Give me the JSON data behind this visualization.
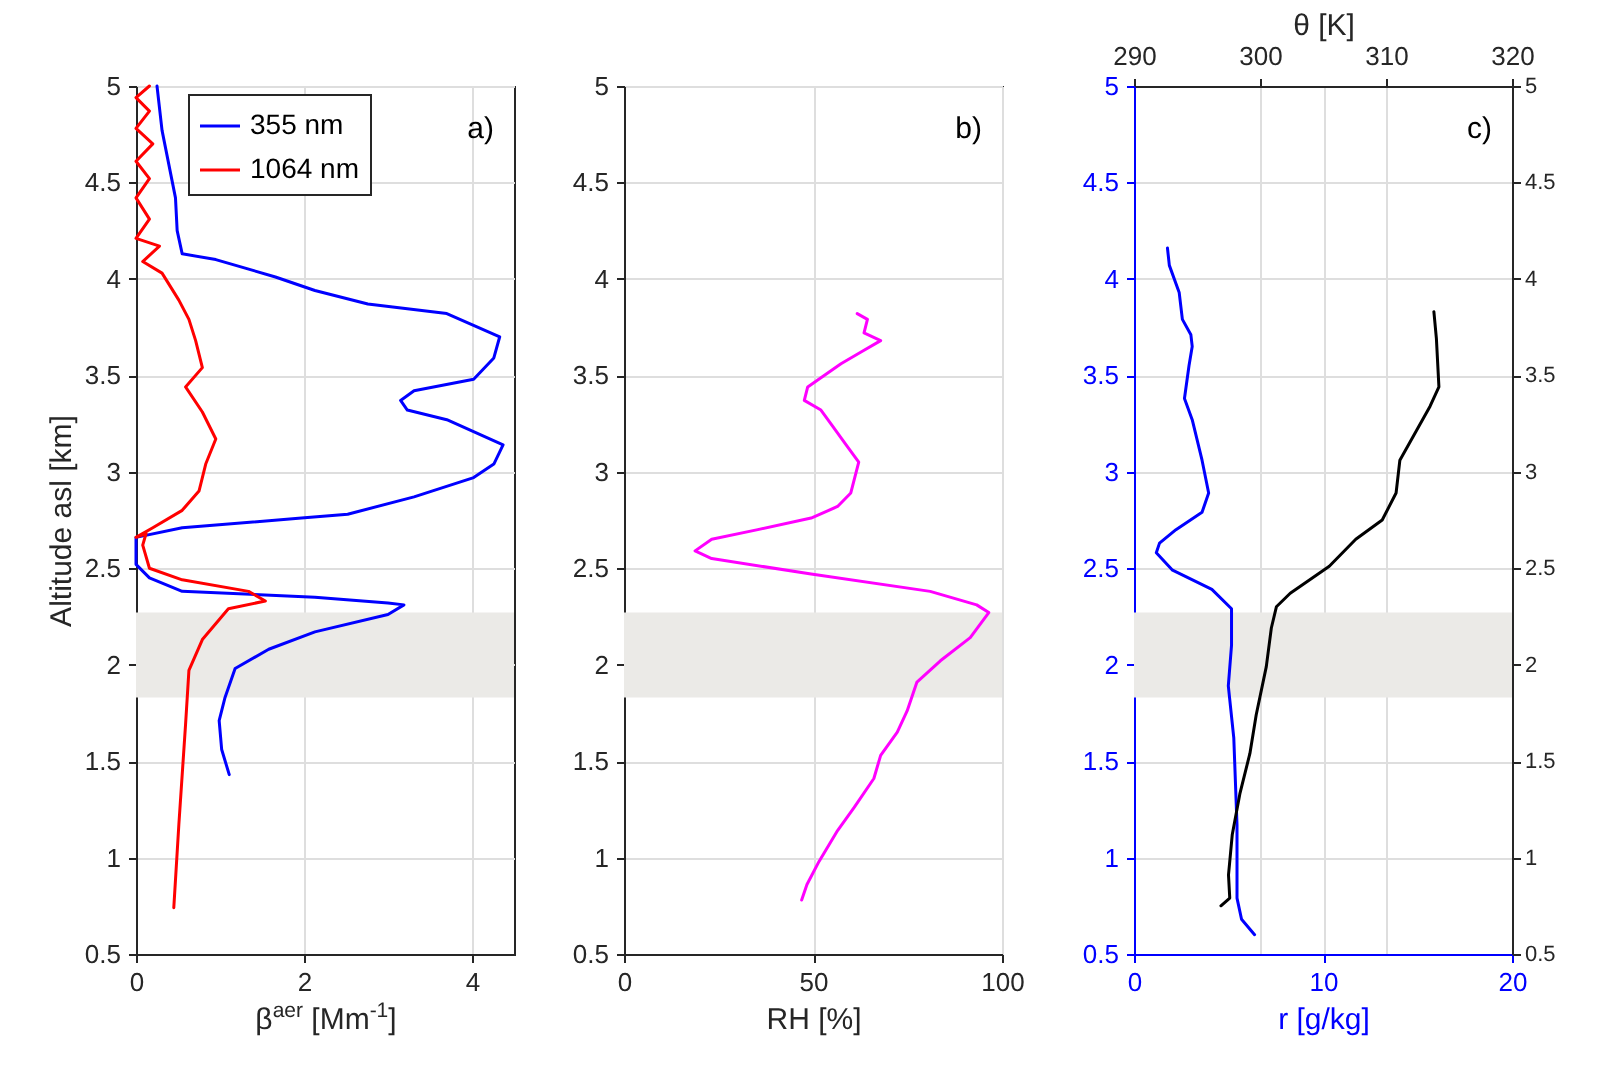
{
  "chart_data": [
    {
      "type": "line",
      "xlabel": "β$^{aer}$ [Mm$^{-1}$]",
      "ylabel": "Altitude asl [km]",
      "xlim": [
        0,
        4.5
      ],
      "xticks": [
        0,
        2,
        4
      ],
      "ylim": [
        0.5,
        5
      ],
      "yticks": [
        0.5,
        1,
        1.5,
        2,
        2.5,
        3,
        3.5,
        4,
        4.5,
        5
      ],
      "grid": true,
      "legend": "top left",
      "annotations": [
        "a)"
      ],
      "bands": [
        {
          "axis": "y",
          "from": 1.83,
          "to": 2.27,
          "color": "#ebeae7"
        }
      ],
      "series": [
        {
          "name": "355 nm",
          "color": "#0000ff",
          "x": [
            0.25,
            0.31,
            0.47,
            0.49,
            0.55,
            0.95,
            1.66,
            2.13,
            2.76,
            3.7,
            4.33,
            4.26,
            4.02,
            3.31,
            3.15,
            3.23,
            3.7,
            4.37,
            4.26,
            4.02,
            3.31,
            2.52,
            1.97,
            0.55,
            0,
            0,
            0.16,
            0.55,
            2.13,
            3.0,
            3.19,
            3.0,
            2.13,
            1.58,
            1.18,
            1.06,
            0.99,
            1.02,
            1.11
          ],
          "values": [
            5.0,
            4.77,
            4.42,
            4.25,
            4.13,
            4.1,
            4.01,
            3.94,
            3.87,
            3.82,
            3.7,
            3.59,
            3.48,
            3.42,
            3.37,
            3.32,
            3.27,
            3.14,
            3.04,
            2.97,
            2.87,
            2.78,
            2.76,
            2.71,
            2.66,
            2.52,
            2.45,
            2.38,
            2.35,
            2.32,
            2.31,
            2.26,
            2.17,
            2.08,
            1.98,
            1.83,
            1.71,
            1.56,
            1.43
          ]
        },
        {
          "name": "1064 nm",
          "color": "#ff0000",
          "x": [
            0.16,
            0,
            0.16,
            0,
            0.2,
            0,
            0.16,
            0,
            0.16,
            0,
            0.28,
            0.08,
            0.31,
            0.51,
            0.63,
            0.71,
            0.79,
            0.59,
            0.79,
            0.95,
            0.83,
            0.75,
            0.55,
            0.2,
            0,
            0.12,
            0.08,
            0.16,
            0.55,
            1.34,
            1.54,
            1.1,
            0.79,
            0.63,
            0.59,
            0.51,
            0.45
          ],
          "values": [
            5.0,
            4.94,
            4.87,
            4.78,
            4.7,
            4.61,
            4.52,
            4.42,
            4.31,
            4.21,
            4.17,
            4.09,
            4.03,
            3.89,
            3.79,
            3.68,
            3.54,
            3.44,
            3.31,
            3.17,
            3.04,
            2.9,
            2.8,
            2.71,
            2.66,
            2.68,
            2.62,
            2.5,
            2.44,
            2.38,
            2.33,
            2.29,
            2.13,
            1.97,
            1.69,
            1.17,
            0.74
          ]
        }
      ]
    },
    {
      "type": "line",
      "xlabel": "RH [%]",
      "xlim": [
        0,
        100
      ],
      "xticks": [
        0,
        50,
        100
      ],
      "ylim": [
        0.5,
        5
      ],
      "yticks": [
        0.5,
        1,
        1.5,
        2,
        2.5,
        3,
        3.5,
        4,
        4.5,
        5
      ],
      "grid": true,
      "annotations": [
        "b)"
      ],
      "bands": [
        {
          "axis": "y",
          "from": 1.83,
          "to": 2.27,
          "color": "#ebeae7"
        }
      ],
      "series": [
        {
          "color": "#ff00ff",
          "x": [
            61.7,
            64.4,
            63.5,
            67.9,
            62.6,
            57.4,
            48.6,
            47.7,
            52.1,
            54.7,
            59.1,
            62.1,
            60,
            56.5,
            49.5,
            35.4,
            23.2,
            18.8,
            23.2,
            49.5,
            81,
            93.3,
            96.5,
            91.6,
            83.7,
            77.5,
            74.9,
            72.3,
            67.9,
            66.1,
            60.9,
            56.5,
            51.6,
            48.4,
            47
          ],
          "values": [
            3.82,
            3.79,
            3.72,
            3.68,
            3.62,
            3.56,
            3.44,
            3.37,
            3.32,
            3.25,
            3.13,
            3.05,
            2.89,
            2.82,
            2.76,
            2.7,
            2.65,
            2.59,
            2.55,
            2.47,
            2.38,
            2.31,
            2.27,
            2.14,
            2.02,
            1.91,
            1.76,
            1.65,
            1.53,
            1.41,
            1.26,
            1.14,
            0.98,
            0.86,
            0.78
          ]
        }
      ]
    },
    {
      "type": "line",
      "xlabel": "r [g/kg]",
      "x2label": "θ [K]",
      "xlim": [
        0,
        20
      ],
      "xticks": [
        0,
        10,
        20
      ],
      "x2lim": [
        290,
        320
      ],
      "x2ticks": [
        290,
        300,
        310,
        320
      ],
      "ylim": [
        0.5,
        5
      ],
      "yticks": [
        0.5,
        1,
        1.5,
        2,
        2.5,
        3,
        3.5,
        4,
        4.5,
        5
      ],
      "y2lim": [
        0.5,
        5
      ],
      "y2ticks": [
        0.5,
        1,
        1.5,
        2,
        2.5,
        3,
        3.5,
        4,
        4.5,
        5
      ],
      "grid": true,
      "annotations": [
        "c)"
      ],
      "bands": [
        {
          "axis": "y",
          "from": 1.83,
          "to": 2.27,
          "color": "#ebeae7"
        }
      ],
      "series": [
        {
          "color": "#0000ff",
          "x": [
            1.77,
            1.87,
            2.39,
            2.56,
            3.01,
            3.08,
            2.91,
            2.67,
            3.08,
            3.6,
            3.95,
            3.6,
            2.22,
            1.35,
            1.18,
            2.04,
            4.12,
            5.16,
            5.16,
            4.99,
            5.28,
            5.45,
            5.45,
            5.69,
            6.38
          ],
          "values": [
            4.16,
            4.07,
            3.93,
            3.79,
            3.71,
            3.65,
            3.55,
            3.38,
            3.27,
            3.06,
            2.89,
            2.79,
            2.7,
            2.63,
            2.58,
            2.49,
            2.39,
            2.29,
            2.1,
            1.89,
            1.62,
            1.17,
            0.79,
            0.68,
            0.6
          ]
        },
        {
          "color": "#000000",
          "axis": "x2",
          "x": [
            313.8,
            314.0,
            314.2,
            313.5,
            312.3,
            311.1,
            310.8,
            309.7,
            307.6,
            305.5,
            302.4,
            301.3,
            300.9,
            300.5,
            299.7,
            299.2,
            298.4,
            297.8,
            297.5,
            297.6,
            296.9
          ],
          "values": [
            3.83,
            3.69,
            3.44,
            3.34,
            3.2,
            3.06,
            2.89,
            2.75,
            2.65,
            2.51,
            2.37,
            2.3,
            2.19,
            1.99,
            1.74,
            1.54,
            1.33,
            1.12,
            0.91,
            0.79,
            0.75
          ]
        }
      ]
    }
  ]
}
